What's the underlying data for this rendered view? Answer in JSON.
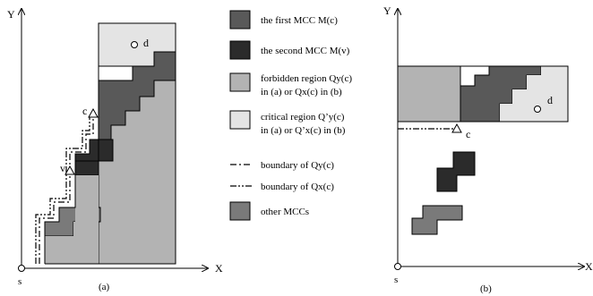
{
  "colors": {
    "first_mcc": "#595959",
    "second_mcc": "#2b2b2b",
    "forbidden": "#b3b3b3",
    "critical": "#e4e4e4",
    "other_mcc": "#7a7a7a",
    "stroke": "#000000"
  },
  "panel_a": {
    "y_axis": "Y",
    "x_axis": "X",
    "origin": "s",
    "dest": "d",
    "point_c": "c",
    "point_v": "v",
    "caption": "(a)"
  },
  "panel_b": {
    "y_axis": "Y",
    "x_axis": "X",
    "origin": "s",
    "dest": "d",
    "point_c": "c",
    "caption": "(b)"
  },
  "legend": {
    "first_mcc": "the first MCC M(c)",
    "second_mcc": "the second MCC M(v)",
    "forbidden_line1": "forbidden region Qy(c)",
    "forbidden_line2": "in (a) or Qx(c) in (b)",
    "critical_line1": "critical region Q’y(c)",
    "critical_line2": "in (a) or Q’x(c) in (b)",
    "boundary_qy": "boundary of Qy(c)",
    "boundary_qx": "boundary of Qx(c)",
    "other_mccs": "other MCCs"
  }
}
